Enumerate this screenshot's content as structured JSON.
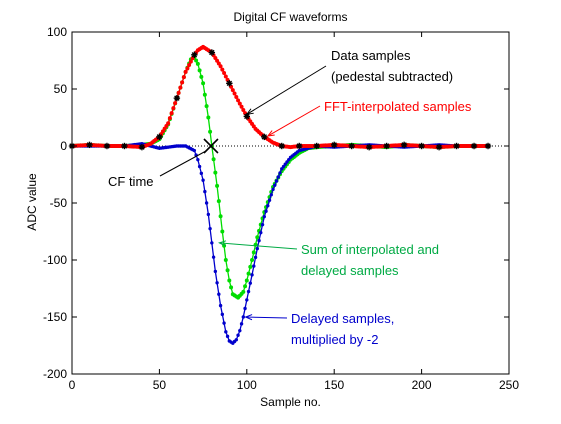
{
  "chart_data": {
    "type": "line",
    "title": "Digital CF waveforms",
    "xlabel": "Sample no.",
    "ylabel": "ADC value",
    "xlim": [
      0,
      250
    ],
    "ylim": [
      -200,
      100
    ],
    "xticks": [
      0,
      50,
      100,
      150,
      200,
      250
    ],
    "yticks": [
      100,
      50,
      0,
      -50,
      -100,
      -150,
      -200
    ],
    "grid": false,
    "colors": {
      "data": "#000000",
      "fft": "#ff0000",
      "delayed": "#0000cc",
      "sum": "#00dd00",
      "zero_line": "#000000"
    },
    "series": [
      {
        "key": "fft",
        "x": [
          0,
          10,
          20,
          30,
          40,
          45,
          50,
          55,
          60,
          65,
          70,
          72,
          75,
          80,
          85,
          90,
          95,
          100,
          105,
          110,
          115,
          120,
          125,
          130,
          140,
          150,
          160,
          170,
          180,
          190,
          200,
          210,
          220,
          230,
          238
        ],
        "y": [
          0,
          1,
          0,
          0,
          -1,
          2,
          8,
          20,
          42,
          65,
          80,
          84,
          87,
          82,
          70,
          55,
          40,
          26,
          15,
          8,
          3,
          0,
          -1,
          0,
          0,
          1,
          0,
          -1,
          0,
          1,
          0,
          -1,
          0,
          0,
          0
        ]
      },
      {
        "key": "data",
        "x": [
          0,
          10,
          20,
          30,
          40,
          50,
          60,
          70,
          80,
          90,
          100,
          110,
          120,
          130,
          140,
          150,
          160,
          170,
          180,
          190,
          200,
          210,
          220,
          230,
          238
        ],
        "y": [
          0,
          1,
          0,
          0,
          -1,
          8,
          42,
          80,
          82,
          55,
          26,
          8,
          0,
          0,
          0,
          1,
          0,
          -1,
          0,
          1,
          0,
          -1,
          0,
          0,
          0
        ]
      },
      {
        "key": "delayed",
        "x": [
          0,
          10,
          20,
          30,
          40,
          45,
          50,
          55,
          60,
          65,
          70,
          72,
          75,
          78,
          80,
          82,
          85,
          88,
          90,
          92,
          94,
          96,
          98,
          100,
          103,
          106,
          110,
          115,
          120,
          125,
          130,
          135,
          140,
          150,
          160,
          170,
          180,
          190,
          200,
          210,
          220,
          230,
          238
        ],
        "y": [
          0,
          0,
          0,
          0,
          2,
          0,
          -2,
          -1,
          0,
          0,
          -4,
          -12,
          -30,
          -60,
          -85,
          -110,
          -140,
          -163,
          -171,
          -173,
          -170,
          -162,
          -150,
          -135,
          -113,
          -90,
          -62,
          -38,
          -20,
          -10,
          -4,
          -2,
          0,
          -1,
          0,
          1,
          0,
          -1,
          0,
          1,
          0,
          0,
          0
        ]
      },
      {
        "key": "sum",
        "x": [
          0,
          10,
          20,
          30,
          40,
          45,
          50,
          55,
          60,
          65,
          68,
          70,
          72,
          75,
          78,
          80,
          83,
          86,
          88,
          90,
          92,
          95,
          98,
          100,
          103,
          106,
          110,
          115,
          120,
          125,
          130,
          135,
          140,
          150,
          160,
          170,
          180,
          190,
          200,
          210,
          220,
          230,
          238
        ],
        "y": [
          0,
          1,
          0,
          0,
          1,
          2,
          6,
          19,
          42,
          65,
          76,
          78,
          72,
          55,
          25,
          0,
          -35,
          -75,
          -100,
          -118,
          -130,
          -133,
          -128,
          -118,
          -100,
          -80,
          -58,
          -36,
          -22,
          -12,
          -6,
          -2,
          -1,
          0,
          1,
          0,
          -1,
          1,
          0,
          -1,
          0,
          0,
          0
        ]
      }
    ],
    "annotations": {
      "data_label_1": "Data samples",
      "data_label_2": "(pedestal subtracted)",
      "fft_label": "FFT-interpolated samples",
      "sum_label_1": "Sum of interpolated and",
      "sum_label_2": "delayed samples",
      "delayed_label_1": "Delayed samples,",
      "delayed_label_2": "multiplied by -2",
      "cf_label": "CF time",
      "cf_time_x": 79.5
    }
  }
}
